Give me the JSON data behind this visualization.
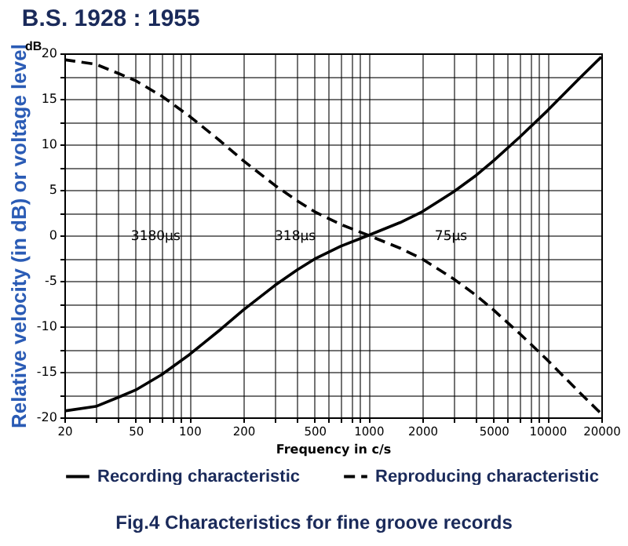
{
  "chart_data": {
    "type": "line",
    "title": "B.S. 1928 : 1955",
    "xlabel": "Frequency in c/s",
    "ylabel": "Relative velocity (in dB) or voltage level",
    "annotations": [
      "dB",
      "Fig.4 Characteristics for fine groove records",
      "3180µs",
      "318µs",
      "75µs"
    ],
    "log": "x",
    "grid": true,
    "legend": "bottom",
    "marker": "none",
    "xlim": [
      20,
      20000
    ],
    "ylim": [
      -20,
      20
    ],
    "xticks": [
      20,
      {
        "value": 30,
        "label": null
      },
      {
        "value": 40,
        "label": null
      },
      50,
      {
        "value": 60,
        "label": null
      },
      {
        "value": 70,
        "label": null
      },
      {
        "value": 80,
        "label": null
      },
      {
        "value": 90,
        "label": null
      },
      100,
      200,
      {
        "value": 300,
        "label": null
      },
      {
        "value": 400,
        "label": null
      },
      500,
      {
        "value": 600,
        "label": null
      },
      {
        "value": 700,
        "label": null
      },
      {
        "value": 800,
        "label": null
      },
      {
        "value": 900,
        "label": null
      },
      1000,
      2000,
      {
        "value": 3000,
        "label": null
      },
      {
        "value": 4000,
        "label": null
      },
      5000,
      {
        "value": 6000,
        "label": null
      },
      {
        "value": 7000,
        "label": null
      },
      {
        "value": 8000,
        "label": null
      },
      {
        "value": 9000,
        "label": null
      },
      10000,
      20000
    ],
    "yticks": [
      -20,
      {
        "value": -17.5,
        "label": null
      },
      -15,
      {
        "value": -12.5,
        "label": null
      },
      -10,
      {
        "value": -7.5,
        "label": null
      },
      -5,
      {
        "value": -2.5,
        "label": null
      },
      0,
      {
        "value": 2.5,
        "label": null
      },
      5,
      {
        "value": 7.5,
        "label": null
      },
      10,
      {
        "value": 12.5,
        "label": null
      },
      15,
      {
        "value": 17.5,
        "label": null
      },
      20
    ],
    "x": [
      20,
      30,
      40,
      50,
      70,
      100,
      150,
      200,
      300,
      400,
      500,
      700,
      1000,
      1500,
      2000,
      3000,
      4000,
      5000,
      7000,
      10000,
      15000,
      20000
    ],
    "series": [
      {
        "name": "Recording characteristic",
        "color": "#000000",
        "line_style": "solid",
        "values": [
          -19.3,
          -18.8,
          -17.8,
          -17.0,
          -15.3,
          -13.1,
          -10.3,
          -8.2,
          -5.5,
          -3.8,
          -2.6,
          -1.2,
          0,
          1.4,
          2.6,
          4.8,
          6.6,
          8.2,
          10.8,
          13.7,
          17.2,
          19.6
        ]
      },
      {
        "name": "Reproducing characteristic",
        "color": "#000000",
        "line_style": "dashed",
        "values": [
          19.3,
          18.8,
          17.8,
          17.0,
          15.3,
          13.1,
          10.3,
          8.2,
          5.5,
          3.8,
          2.6,
          1.2,
          0,
          -1.4,
          -2.6,
          -4.8,
          -6.6,
          -8.2,
          -10.8,
          -13.7,
          -17.2,
          -19.6
        ]
      }
    ]
  }
}
